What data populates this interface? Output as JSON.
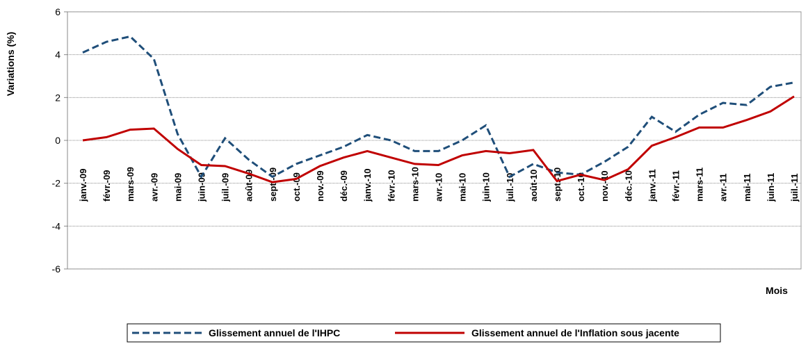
{
  "chart_data": {
    "type": "line",
    "y_label": "Variations (%)",
    "x_label": "Mois",
    "categories": [
      "janv.-09",
      "févr.-09",
      "mars-09",
      "avr.-09",
      "mai-09",
      "juin-09",
      "juil.-09",
      "août-09",
      "sept.-09",
      "oct.-09",
      "nov.-09",
      "déc.-09",
      "janv.-10",
      "févr.-10",
      "mars-10",
      "avr.-10",
      "mai-10",
      "juin-10",
      "juil.-10",
      "août-10",
      "sept.-10",
      "oct.-10",
      "nov.-10",
      "déc.-10",
      "janv.-11",
      "févr.-11",
      "mars-11",
      "avr.-11",
      "mai-11",
      "juin-11",
      "juil.-11"
    ],
    "series": [
      {
        "name": "Glissement annuel de l'IHPC",
        "color": "#1f4e79",
        "dash": true,
        "values": [
          4.1,
          4.6,
          4.85,
          3.8,
          0.3,
          -1.7,
          0.1,
          -0.9,
          -1.7,
          -1.1,
          -0.7,
          -0.3,
          0.25,
          0,
          -0.5,
          -0.5,
          0,
          0.7,
          -1.7,
          -1.1,
          -1.5,
          -1.6,
          -1,
          -0.3,
          1.1,
          0.4,
          1.2,
          1.75,
          1.65,
          2.5,
          2.7
        ]
      },
      {
        "name": "Glissement annuel de l'Inflation sous jacente",
        "color": "#c00000",
        "dash": false,
        "values": [
          0,
          0.15,
          0.5,
          0.55,
          -0.4,
          -1.15,
          -1.2,
          -1.55,
          -1.95,
          -1.8,
          -1.2,
          -0.8,
          -0.5,
          -0.8,
          -1.1,
          -1.15,
          -0.7,
          -0.5,
          -0.6,
          -0.45,
          -1.9,
          -1.6,
          -1.85,
          -1.35,
          -0.25,
          0.15,
          0.6,
          0.6,
          0.95,
          1.35,
          2.05
        ]
      }
    ],
    "ylim": [
      -6,
      6
    ],
    "yticks": [
      -6,
      -4,
      -2,
      0,
      2,
      4,
      6
    ],
    "grid": true,
    "legend": "bottom"
  }
}
